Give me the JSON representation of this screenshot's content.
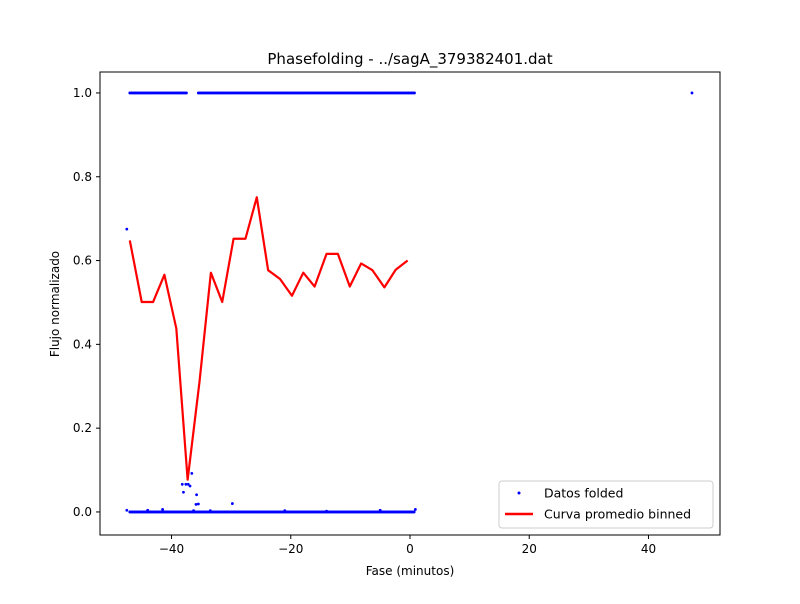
{
  "chart_data": {
    "type": "scatter",
    "title": "Phasefolding - ../sagA_379382401.dat",
    "xlabel": "Fase (minutos)",
    "ylabel": "Flujo normalizado",
    "xlim": [
      -52,
      52
    ],
    "ylim": [
      -0.055,
      1.05
    ],
    "xticks": [
      -40,
      -20,
      0,
      20,
      40
    ],
    "xtick_labels": [
      "−40",
      "−20",
      "0",
      "20",
      "40"
    ],
    "yticks": [
      0.0,
      0.2,
      0.4,
      0.6,
      0.8,
      1.0
    ],
    "ytick_labels": [
      "0.0",
      "0.2",
      "0.4",
      "0.6",
      "0.8",
      "1.0"
    ],
    "grid": false,
    "legend_position": "lower right",
    "series": [
      {
        "name": "Datos folded",
        "kind": "scatter",
        "color": "#0000ff",
        "segments": [
          {
            "x_start": -47.0,
            "x_end": -37.5,
            "step": 0.25,
            "y": 1.0
          },
          {
            "x_start": -35.5,
            "x_end": 0.8,
            "step": 0.25,
            "y": 1.0
          },
          {
            "x_start": -47.0,
            "x_end": 0.8,
            "step": 0.18,
            "y": 0.0
          }
        ],
        "points": [
          [
            47.3,
            1.0
          ],
          [
            -47.5,
            0.675
          ],
          [
            -47.5,
            0.004
          ],
          [
            -38.2,
            0.066
          ],
          [
            -37.6,
            0.066
          ],
          [
            -37.2,
            0.066
          ],
          [
            -36.9,
            0.062
          ],
          [
            -36.6,
            0.092
          ],
          [
            -38.0,
            0.047
          ],
          [
            -36.3,
            0.003
          ],
          [
            -35.8,
            0.041
          ],
          [
            -35.5,
            0.019
          ],
          [
            -35.9,
            0.018
          ],
          [
            -29.8,
            0.02
          ],
          [
            -44.0,
            0.004
          ],
          [
            -41.5,
            0.006
          ],
          [
            -33.5,
            0.003
          ],
          [
            -21.0,
            0.003
          ],
          [
            -14.0,
            0.002
          ],
          [
            -5.0,
            0.004
          ],
          [
            0.9,
            0.006
          ]
        ]
      },
      {
        "name": "Curva promedio binned",
        "kind": "line",
        "color": "#ff0000",
        "x": [
          -47.0,
          -45.0,
          -43.1,
          -41.2,
          -39.2,
          -37.3,
          -35.3,
          -33.4,
          -31.5,
          -29.6,
          -27.6,
          -25.7,
          -23.8,
          -21.8,
          -19.8,
          -17.9,
          -16.0,
          -14.0,
          -12.1,
          -10.1,
          -8.2,
          -6.3,
          -4.3,
          -2.4,
          -0.4
        ],
        "y": [
          0.648,
          0.501,
          0.501,
          0.566,
          0.438,
          0.077,
          0.312,
          0.571,
          0.501,
          0.652,
          0.652,
          0.751,
          0.577,
          0.556,
          0.516,
          0.571,
          0.538,
          0.616,
          0.616,
          0.538,
          0.593,
          0.577,
          0.536,
          0.578,
          0.6
        ]
      }
    ]
  }
}
